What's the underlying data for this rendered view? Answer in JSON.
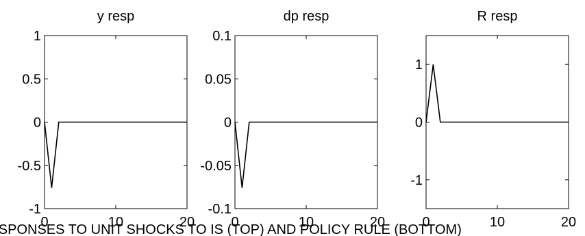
{
  "caption": "RESPONSES TO UNIT SHOCKS TO IS (TOP) AND POLICY RULE (BOTTOM)",
  "chart_data": [
    {
      "type": "line",
      "title": "y resp",
      "xlim": [
        0,
        20
      ],
      "ylim": [
        -1,
        1
      ],
      "xticks": [
        0,
        10,
        20
      ],
      "xtick_labels": [
        "0",
        "10",
        "20"
      ],
      "yticks": [
        -1,
        -0.5,
        0,
        0.5,
        1
      ],
      "ytick_labels": [
        "-1",
        "-0.5",
        "0",
        "0.5",
        "1"
      ],
      "grid": false,
      "color": "#000000",
      "x": [
        0,
        1,
        2,
        20
      ],
      "y": [
        0,
        -0.76,
        0,
        0
      ]
    },
    {
      "type": "line",
      "title": "dp resp",
      "xlim": [
        0,
        20
      ],
      "ylim": [
        -0.1,
        0.1
      ],
      "xticks": [
        0,
        10,
        20
      ],
      "xtick_labels": [
        "0",
        "10",
        "20"
      ],
      "yticks": [
        -0.1,
        -0.05,
        0,
        0.05,
        0.1
      ],
      "ytick_labels": [
        "-0.1",
        "-0.05",
        "0",
        "0.05",
        "0.1"
      ],
      "grid": false,
      "color": "#000000",
      "x": [
        0,
        1,
        2,
        20
      ],
      "y": [
        0,
        -0.076,
        0,
        0
      ]
    },
    {
      "type": "line",
      "title": "R resp",
      "xlim": [
        0,
        20
      ],
      "ylim": [
        -1.5,
        1.5
      ],
      "xticks": [
        0,
        10,
        20
      ],
      "xtick_labels": [
        "0",
        "10",
        "20"
      ],
      "yticks": [
        -1,
        0,
        1
      ],
      "ytick_labels": [
        "-1",
        "0",
        "1"
      ],
      "grid": false,
      "color": "#000000",
      "x": [
        0,
        1,
        2,
        20
      ],
      "y": [
        0,
        1,
        0,
        0
      ]
    }
  ]
}
